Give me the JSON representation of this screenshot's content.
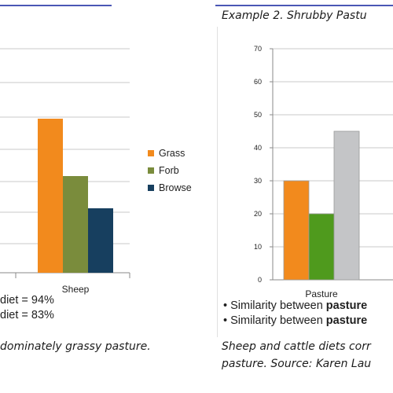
{
  "colors": {
    "grass": "#f28a1d",
    "forb": "#7a8c3c",
    "browse": "#173f5f",
    "gray": "#c4c5c7",
    "green": "#4f9a1d",
    "axis": "#8a8a8a",
    "grid": "#c9c9c9"
  },
  "left": {
    "bullets": [
      "diet = 94%",
      "diet = 83%"
    ],
    "caption": "dominately grassy pasture.",
    "legend": [
      "Grass",
      "Forb",
      "Browse"
    ]
  },
  "right": {
    "heading": "Example 2. Shrubby Pastu",
    "bullets": [
      {
        "pre": "• Similarity between ",
        "bold": "pasture"
      },
      {
        "pre": "• Similarity between ",
        "bold": "pasture"
      }
    ],
    "caption_lines": [
      "Sheep and cattle diets corr",
      "pasture. Source: Karen Lau"
    ]
  },
  "chart_data": [
    {
      "type": "bar",
      "categories": [
        "Sheep"
      ],
      "series": [
        {
          "name": "Grass",
          "values": [
            null
          ]
        },
        {
          "name": "Forb",
          "values": [
            null
          ]
        },
        {
          "name": "Browse",
          "values": [
            null
          ]
        }
      ],
      "grid": true,
      "legend": "right"
    },
    {
      "type": "bar",
      "categories": [
        "Pasture"
      ],
      "series": [
        {
          "values": [
            30
          ]
        },
        {
          "values": [
            20
          ]
        },
        {
          "values": [
            45
          ]
        }
      ],
      "ylim": [
        0,
        70
      ],
      "yticks": [
        "0",
        "10",
        "20",
        "30",
        "40",
        "50",
        "60",
        "70"
      ],
      "grid": true
    }
  ]
}
